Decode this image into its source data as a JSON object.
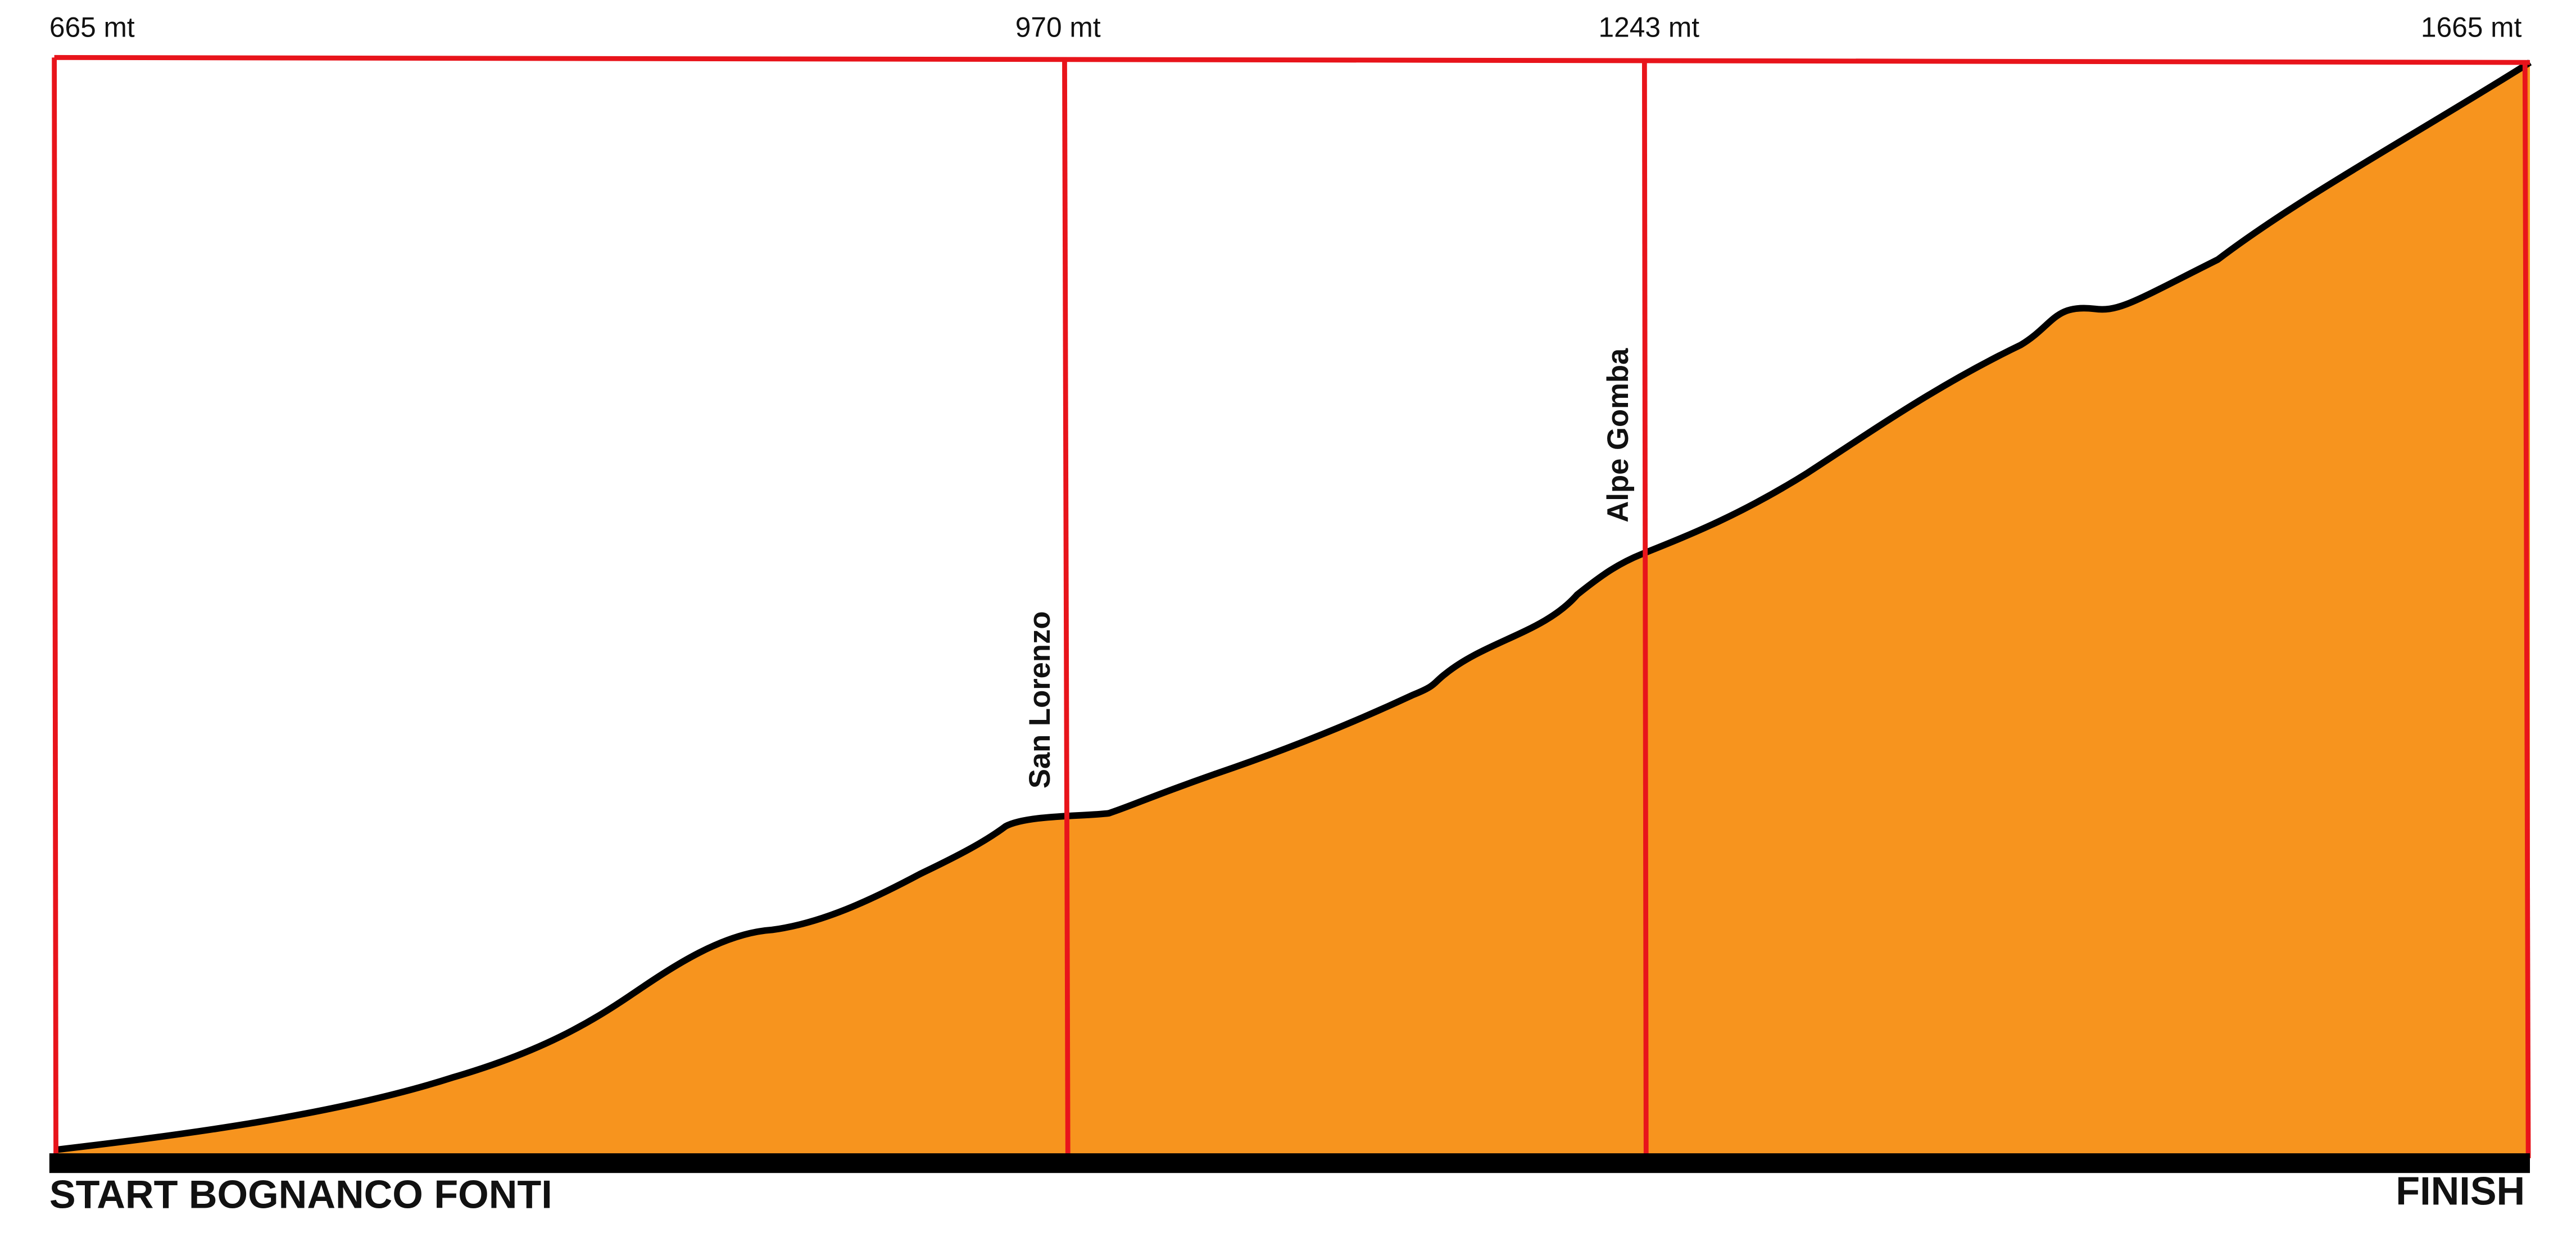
{
  "elevations": [
    "665 mt",
    "970 mt",
    "1243 mt",
    "1665 mt"
  ],
  "waypoints": [
    "San Lorenzo",
    "Alpe Gomba"
  ],
  "start": "START BOGNANCO FONTI",
  "finish": "FINISH"
}
